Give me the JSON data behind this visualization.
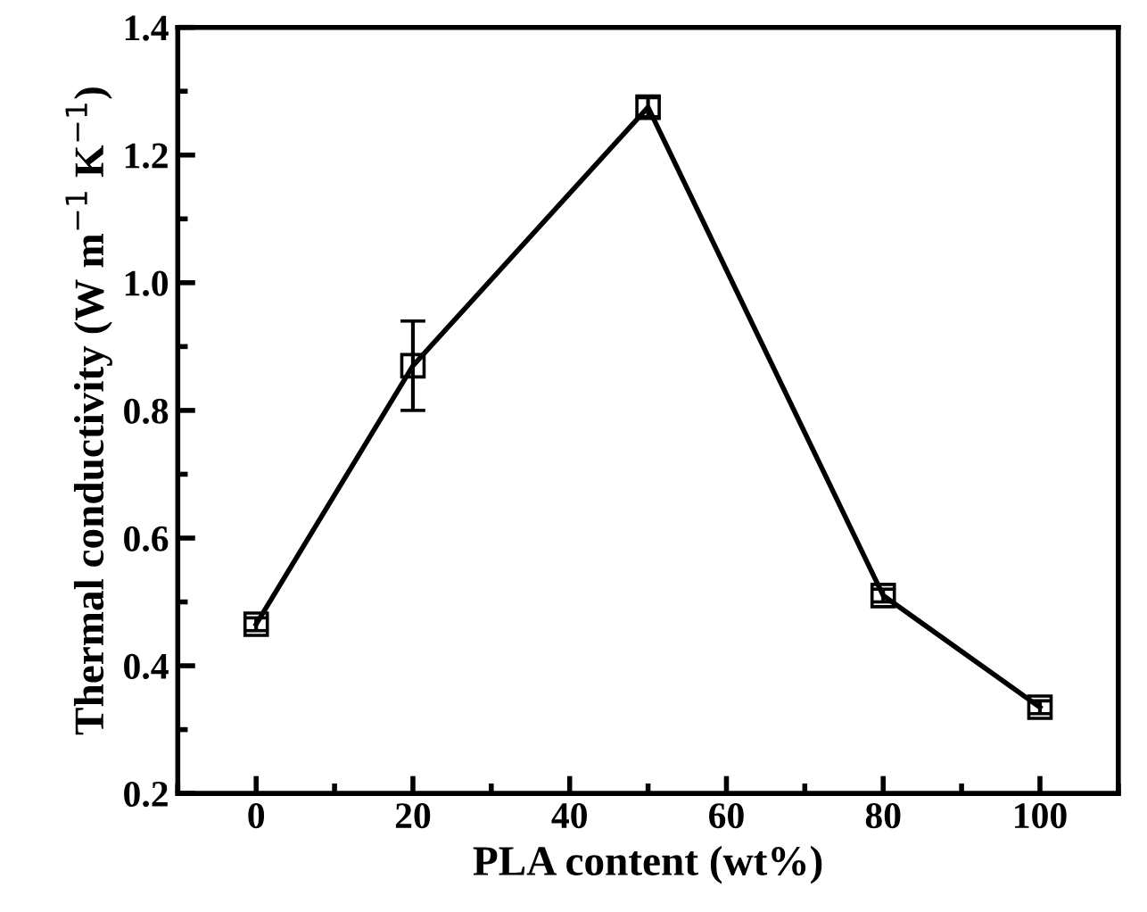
{
  "chart_data": {
    "type": "line",
    "xlabel": "PLA content (wt%)",
    "ylabel": "Thermal conductivity (W m$^{−1}$ K$^{−1}$)",
    "x": [
      0,
      20,
      50,
      80,
      100
    ],
    "series": [
      {
        "color": "#000000",
        "values": [
          0.465,
          0.87,
          1.275,
          0.51,
          0.335
        ],
        "errors": [
          0.01,
          0.07,
          0.015,
          0.01,
          0.01
        ]
      }
    ],
    "xlim": [
      -10,
      110
    ],
    "xticks": [
      0,
      20,
      40,
      60,
      80,
      100
    ],
    "ylim": [
      0.2,
      1.4
    ],
    "yticks": [
      0.2,
      0.4,
      0.6,
      0.8,
      {
        "value": 1,
        "label": "1.0"
      },
      1.2,
      1.4
    ],
    "marker": "square",
    "line_style": "solid",
    "grid": false,
    "legend": false
  }
}
